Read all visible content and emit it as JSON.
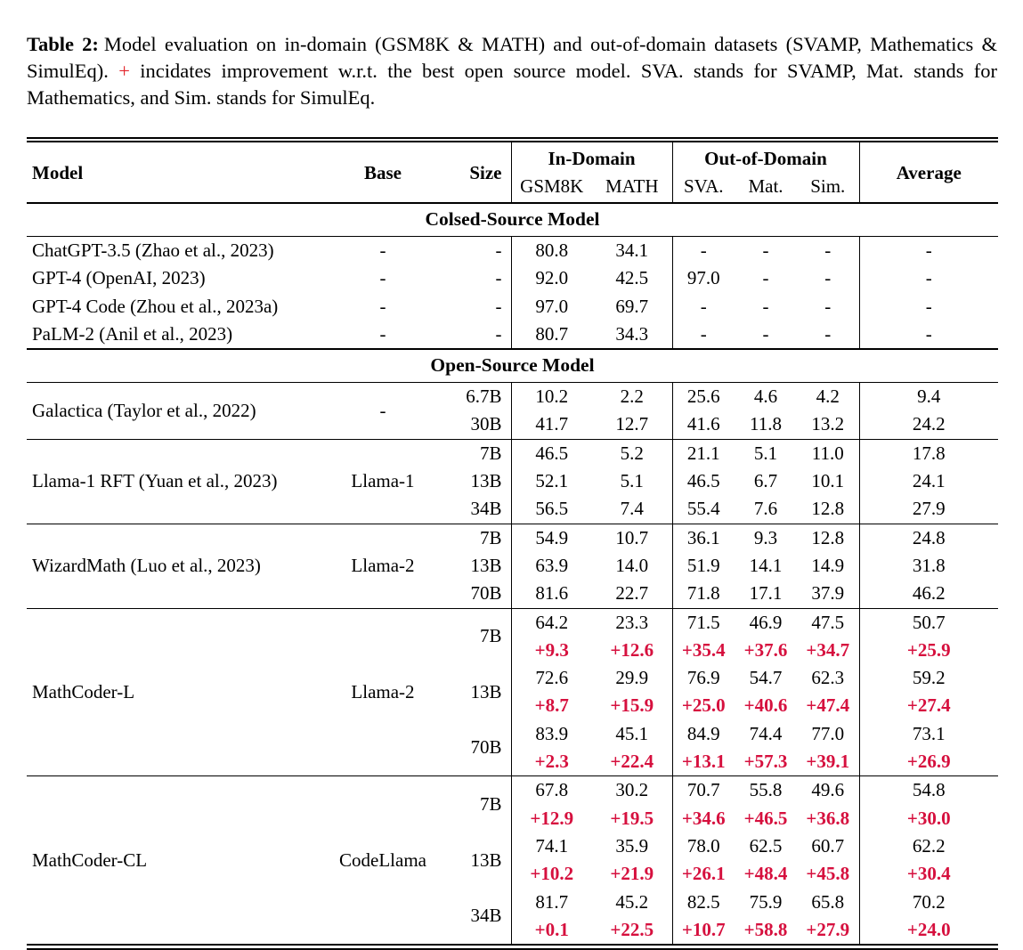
{
  "caption": {
    "label": "Table 2:",
    "before_plus": "Model evaluation on in-domain (GSM8K & MATH) and out-of-domain datasets (SVAMP, Mathematics & SimulEq).",
    "plus": "+",
    "after_plus": "incidates improvement w.r.t. the best open source model. SVA. stands for SVAMP, Mat. stands for Mathematics, and Sim. stands for SimulEq."
  },
  "colors": {
    "caption_plus": "#e3242b",
    "delta": "#d6103e"
  },
  "table": {
    "header": {
      "model": "Model",
      "base": "Base",
      "size": "Size",
      "in_domain": "In-Domain",
      "out_of_domain": "Out-of-Domain",
      "average": "Average",
      "subheaders": [
        "GSM8K",
        "MATH",
        "SVA.",
        "Mat.",
        "Sim."
      ]
    },
    "sections": [
      {
        "title": "Colsed-Source Model",
        "groups": [
          {
            "model": "ChatGPT-3.5 (Zhao et al., 2023)",
            "base": "-",
            "rows": [
              {
                "size": "-",
                "values": [
                  "80.8",
                  "34.1",
                  "-",
                  "-",
                  "-",
                  "-"
                ]
              }
            ]
          },
          {
            "model": "GPT-4 (OpenAI, 2023)",
            "base": "-",
            "rows": [
              {
                "size": "-",
                "values": [
                  "92.0",
                  "42.5",
                  "97.0",
                  "-",
                  "-",
                  "-"
                ]
              }
            ]
          },
          {
            "model": "GPT-4 Code (Zhou et al., 2023a)",
            "base": "-",
            "rows": [
              {
                "size": "-",
                "values": [
                  "97.0",
                  "69.7",
                  "-",
                  "-",
                  "-",
                  "-"
                ]
              }
            ]
          },
          {
            "model": "PaLM-2 (Anil et al., 2023)",
            "base": "-",
            "rows": [
              {
                "size": "-",
                "values": [
                  "80.7",
                  "34.3",
                  "-",
                  "-",
                  "-",
                  "-"
                ]
              }
            ]
          }
        ]
      },
      {
        "title": "Open-Source Model",
        "groups": [
          {
            "model": "Galactica (Taylor et al., 2022)",
            "base": "-",
            "rows": [
              {
                "size": "6.7B",
                "values": [
                  "10.2",
                  "2.2",
                  "25.6",
                  "4.6",
                  "4.2",
                  "9.4"
                ]
              },
              {
                "size": "30B",
                "values": [
                  "41.7",
                  "12.7",
                  "41.6",
                  "11.8",
                  "13.2",
                  "24.2"
                ]
              }
            ]
          },
          {
            "model": "Llama-1 RFT (Yuan et al., 2023)",
            "base": "Llama-1",
            "rows": [
              {
                "size": "7B",
                "values": [
                  "46.5",
                  "5.2",
                  "21.1",
                  "5.1",
                  "11.0",
                  "17.8"
                ]
              },
              {
                "size": "13B",
                "values": [
                  "52.1",
                  "5.1",
                  "46.5",
                  "6.7",
                  "10.1",
                  "24.1"
                ]
              },
              {
                "size": "34B",
                "values": [
                  "56.5",
                  "7.4",
                  "55.4",
                  "7.6",
                  "12.8",
                  "27.9"
                ]
              }
            ]
          },
          {
            "model": "WizardMath (Luo et al., 2023)",
            "base": "Llama-2",
            "rows": [
              {
                "size": "7B",
                "values": [
                  "54.9",
                  "10.7",
                  "36.1",
                  "9.3",
                  "12.8",
                  "24.8"
                ]
              },
              {
                "size": "13B",
                "values": [
                  "63.9",
                  "14.0",
                  "51.9",
                  "14.1",
                  "14.9",
                  "31.8"
                ]
              },
              {
                "size": "70B",
                "values": [
                  "81.6",
                  "22.7",
                  "71.8",
                  "17.1",
                  "37.9",
                  "46.2"
                ]
              }
            ]
          },
          {
            "model": "MathCoder-L",
            "base": "Llama-2",
            "rows": [
              {
                "size": "7B",
                "values": [
                  "64.2",
                  "23.3",
                  "71.5",
                  "46.9",
                  "47.5",
                  "50.7"
                ],
                "deltas": [
                  "+9.3",
                  "+12.6",
                  "+35.4",
                  "+37.6",
                  "+34.7",
                  "+25.9"
                ]
              },
              {
                "size": "13B",
                "values": [
                  "72.6",
                  "29.9",
                  "76.9",
                  "54.7",
                  "62.3",
                  "59.2"
                ],
                "deltas": [
                  "+8.7",
                  "+15.9",
                  "+25.0",
                  "+40.6",
                  "+47.4",
                  "+27.4"
                ]
              },
              {
                "size": "70B",
                "values": [
                  "83.9",
                  "45.1",
                  "84.9",
                  "74.4",
                  "77.0",
                  "73.1"
                ],
                "deltas": [
                  "+2.3",
                  "+22.4",
                  "+13.1",
                  "+57.3",
                  "+39.1",
                  "+26.9"
                ]
              }
            ]
          },
          {
            "model": "MathCoder-CL",
            "base": "CodeLlama",
            "rows": [
              {
                "size": "7B",
                "values": [
                  "67.8",
                  "30.2",
                  "70.7",
                  "55.8",
                  "49.6",
                  "54.8"
                ],
                "deltas": [
                  "+12.9",
                  "+19.5",
                  "+34.6",
                  "+46.5",
                  "+36.8",
                  "+30.0"
                ]
              },
              {
                "size": "13B",
                "values": [
                  "74.1",
                  "35.9",
                  "78.0",
                  "62.5",
                  "60.7",
                  "62.2"
                ],
                "deltas": [
                  "+10.2",
                  "+21.9",
                  "+26.1",
                  "+48.4",
                  "+45.8",
                  "+30.4"
                ]
              },
              {
                "size": "34B",
                "values": [
                  "81.7",
                  "45.2",
                  "82.5",
                  "75.9",
                  "65.8",
                  "70.2"
                ],
                "deltas": [
                  "+0.1",
                  "+22.5",
                  "+10.7",
                  "+58.8",
                  "+27.9",
                  "+24.0"
                ]
              }
            ]
          }
        ]
      }
    ]
  }
}
